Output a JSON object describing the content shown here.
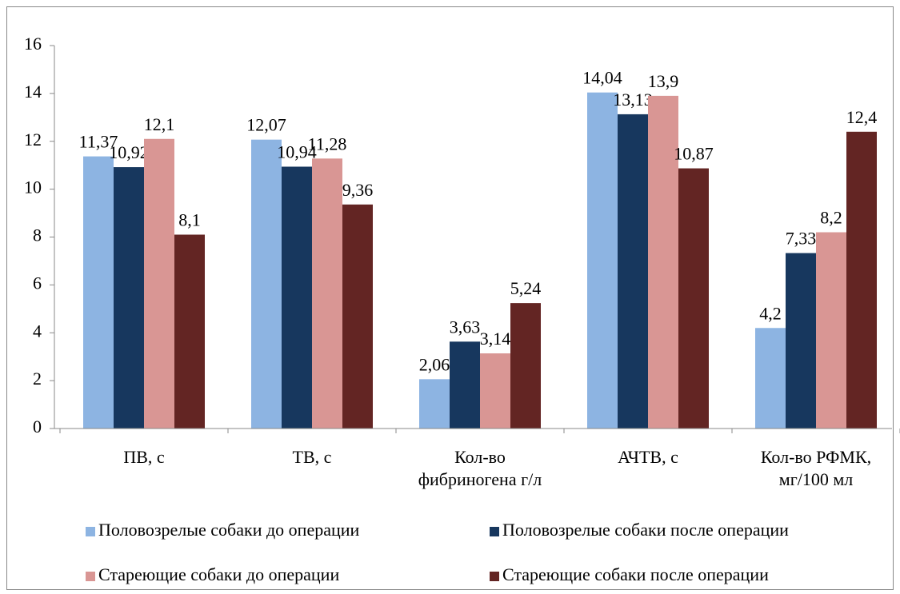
{
  "chart_data": {
    "type": "bar",
    "categories": [
      "ПВ, с",
      "ТВ, с",
      "Кол-во фибриногена г/л",
      "АЧТВ, с",
      "Кол-во РФМК, мг/100 мл"
    ],
    "series": [
      {
        "name": "Половозрелые собаки до операции",
        "color": "#8db4e2",
        "values": [
          11.37,
          12.07,
          2.06,
          14.04,
          4.2
        ],
        "value_labels": [
          "11,37",
          "12,07",
          "2,06",
          "14,04",
          "4,2"
        ]
      },
      {
        "name": "Половозрелые собаки после операции",
        "color": "#17375e",
        "values": [
          10.92,
          10.94,
          3.63,
          13.13,
          7.33
        ],
        "value_labels": [
          "10,92",
          "10,94",
          "3,63",
          "13,13",
          "7,33"
        ]
      },
      {
        "name": "Стареющие собаки до операции",
        "color": "#d99694",
        "values": [
          12.1,
          11.28,
          3.14,
          13.9,
          8.2
        ],
        "value_labels": [
          "12,1",
          "11,28",
          "3,14",
          "13,9",
          "8,2"
        ]
      },
      {
        "name": "Стареющие собаки после операции",
        "color": "#632523",
        "values": [
          8.1,
          9.36,
          5.24,
          10.87,
          12.4
        ],
        "value_labels": [
          "8,1",
          "9,36",
          "5,24",
          "10,87",
          "12,4"
        ]
      }
    ],
    "ylim": [
      0,
      16
    ],
    "yticks": [
      0,
      2,
      4,
      6,
      8,
      10,
      12,
      14,
      16
    ]
  }
}
